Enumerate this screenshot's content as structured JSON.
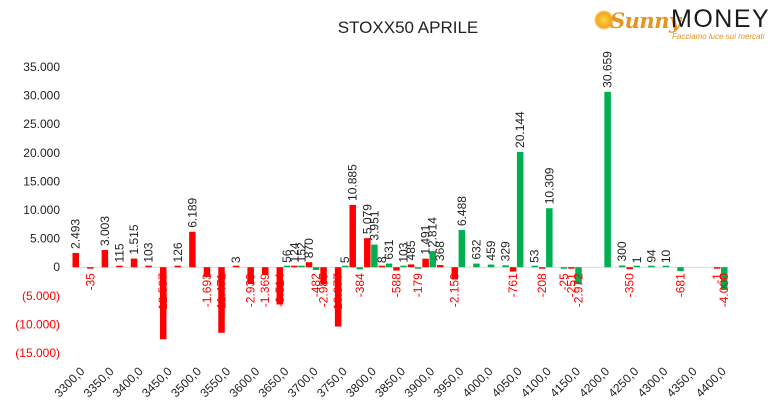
{
  "logo": {
    "brand_first": "Sunny",
    "brand_second": "MONEY",
    "tagline": "Facciamo luce sui mercati"
  },
  "colors": {
    "positive": "#00b050",
    "negative": "#ff0000",
    "negative_label": "#ff0000",
    "text": "#222222",
    "axis": "#d9d9d9"
  },
  "chart_data": {
    "type": "bar",
    "title": "STOXX50 APRILE",
    "ylim": [
      -15000,
      37000
    ],
    "yticks": [
      35000,
      30000,
      25000,
      20000,
      15000,
      10000,
      5000,
      0,
      -5000,
      -10000,
      -15000
    ],
    "ytick_labels": [
      "35.000",
      "30.000",
      "25.000",
      "20.000",
      "15.000",
      "10.000",
      "5.000",
      "0",
      "(5.000)",
      "(10.000)",
      "(15.000)"
    ],
    "x_start": 3300,
    "x_step": 25,
    "xtick_labels": [
      "3300,0",
      "3350,0",
      "3400,0",
      "3450,0",
      "3500,0",
      "3550,0",
      "3600,0",
      "3650,0",
      "3700,0",
      "3750,0",
      "3800,0",
      "3850,0",
      "3900,0",
      "3950,0",
      "4000,0",
      "4050,0",
      "4100,0",
      "4150,0",
      "4200,0",
      "4250,0",
      "4300,0",
      "4350,0",
      "4400,0"
    ],
    "grid": false,
    "legend": "none",
    "series": [
      {
        "color": "#ff0000",
        "values": [
          {
            "strike": 3300,
            "value": 2493,
            "label": "2.493"
          },
          {
            "strike": 3325,
            "value": -35,
            "label": "-35"
          },
          {
            "strike": 3350,
            "value": 3003,
            "label": "3.003"
          },
          {
            "strike": 3375,
            "value": 115,
            "label": "115"
          },
          {
            "strike": 3400,
            "value": 1515,
            "label": "1.515"
          },
          {
            "strike": 3425,
            "value": 103,
            "label": "103"
          },
          {
            "strike": 3450,
            "value": -12597,
            "label": "-12.597"
          },
          {
            "strike": 3475,
            "value": 126,
            "label": "126"
          },
          {
            "strike": 3500,
            "value": 6189,
            "label": "6.189"
          },
          {
            "strike": 3525,
            "value": -1693,
            "label": "-1.693"
          },
          {
            "strike": 3550,
            "value": -11471,
            "label": "-11.471"
          },
          {
            "strike": 3575,
            "value": 3,
            "label": "3"
          },
          {
            "strike": 3600,
            "value": -2939,
            "label": "-2.939"
          },
          {
            "strike": 3625,
            "value": -1369,
            "label": "-1.369"
          },
          {
            "strike": 3650,
            "value": -6514,
            "label": "-6.514"
          },
          {
            "strike": 3675,
            "value": 124,
            "label": "124"
          },
          {
            "strike": 3700,
            "value": 870,
            "label": "870"
          },
          {
            "strike": 3725,
            "value": -2980,
            "label": "-2.980"
          },
          {
            "strike": 3750,
            "value": -10377,
            "label": "-10.377"
          },
          {
            "strike": 3775,
            "value": 10885,
            "label": "10.885"
          },
          {
            "strike": 3800,
            "value": 5079,
            "label": "5.079"
          },
          {
            "strike": 3825,
            "value": 8,
            "label": "8"
          },
          {
            "strike": 3850,
            "value": -588,
            "label": "-588"
          },
          {
            "strike": 3875,
            "value": 485,
            "label": "485"
          },
          {
            "strike": 3900,
            "value": 1491,
            "label": "1.491"
          },
          {
            "strike": 3925,
            "value": 368,
            "label": "368"
          },
          {
            "strike": 3950,
            "value": -2150,
            "label": "-2.150"
          },
          {
            "strike": 4050,
            "value": -761,
            "label": "-761"
          },
          {
            "strike": 4100,
            "value": -208,
            "label": "-208"
          },
          {
            "strike": 4150,
            "value": -251,
            "label": "-251"
          },
          {
            "strike": 4250,
            "value": -350,
            "label": "-350"
          },
          {
            "strike": 4400,
            "value": -1,
            "label": "-1"
          }
        ]
      },
      {
        "color": "#00b050",
        "values": [
          {
            "strike": 3700,
            "value": -482,
            "label": "-482"
          },
          {
            "strike": 3675,
            "value": 152,
            "label": "152"
          },
          {
            "strike": 3750,
            "value": 5,
            "label": "5"
          },
          {
            "strike": 3775,
            "value": -384,
            "label": "-384"
          },
          {
            "strike": 3800,
            "value": 3951,
            "label": "3.951"
          },
          {
            "strike": 3825,
            "value": 631,
            "label": "631"
          },
          {
            "strike": 3850,
            "value": 103,
            "label": "103"
          },
          {
            "strike": 3875,
            "value": -179,
            "label": "-179"
          },
          {
            "strike": 3900,
            "value": 2814,
            "label": "2.814"
          },
          {
            "strike": 3950,
            "value": 6488,
            "label": "6.488"
          },
          {
            "strike": 3975,
            "value": 632,
            "label": "632"
          },
          {
            "strike": 4000,
            "value": 459,
            "label": "459"
          },
          {
            "strike": 4025,
            "value": 329,
            "label": "329"
          },
          {
            "strike": 4050,
            "value": 20144,
            "label": "20.144"
          },
          {
            "strike": 4075,
            "value": 53,
            "label": "53"
          },
          {
            "strike": 4100,
            "value": 10309,
            "label": "10.309"
          },
          {
            "strike": 4125,
            "value": -25,
            "label": "-25"
          },
          {
            "strike": 4150,
            "value": -2972,
            "label": "-2.972"
          },
          {
            "strike": 4200,
            "value": 30659,
            "label": "30.659"
          },
          {
            "strike": 4225,
            "value": 300,
            "label": "300"
          },
          {
            "strike": 4250,
            "value": 1,
            "label": "1"
          },
          {
            "strike": 4275,
            "value": 94,
            "label": "94"
          },
          {
            "strike": 4300,
            "value": 10,
            "label": "10"
          },
          {
            "strike": 4325,
            "value": -681,
            "label": "-681"
          },
          {
            "strike": 3650,
            "value": 56,
            "label": "56"
          },
          {
            "strike": 4400,
            "value": -4000,
            "label": "-4.000"
          }
        ]
      }
    ]
  }
}
